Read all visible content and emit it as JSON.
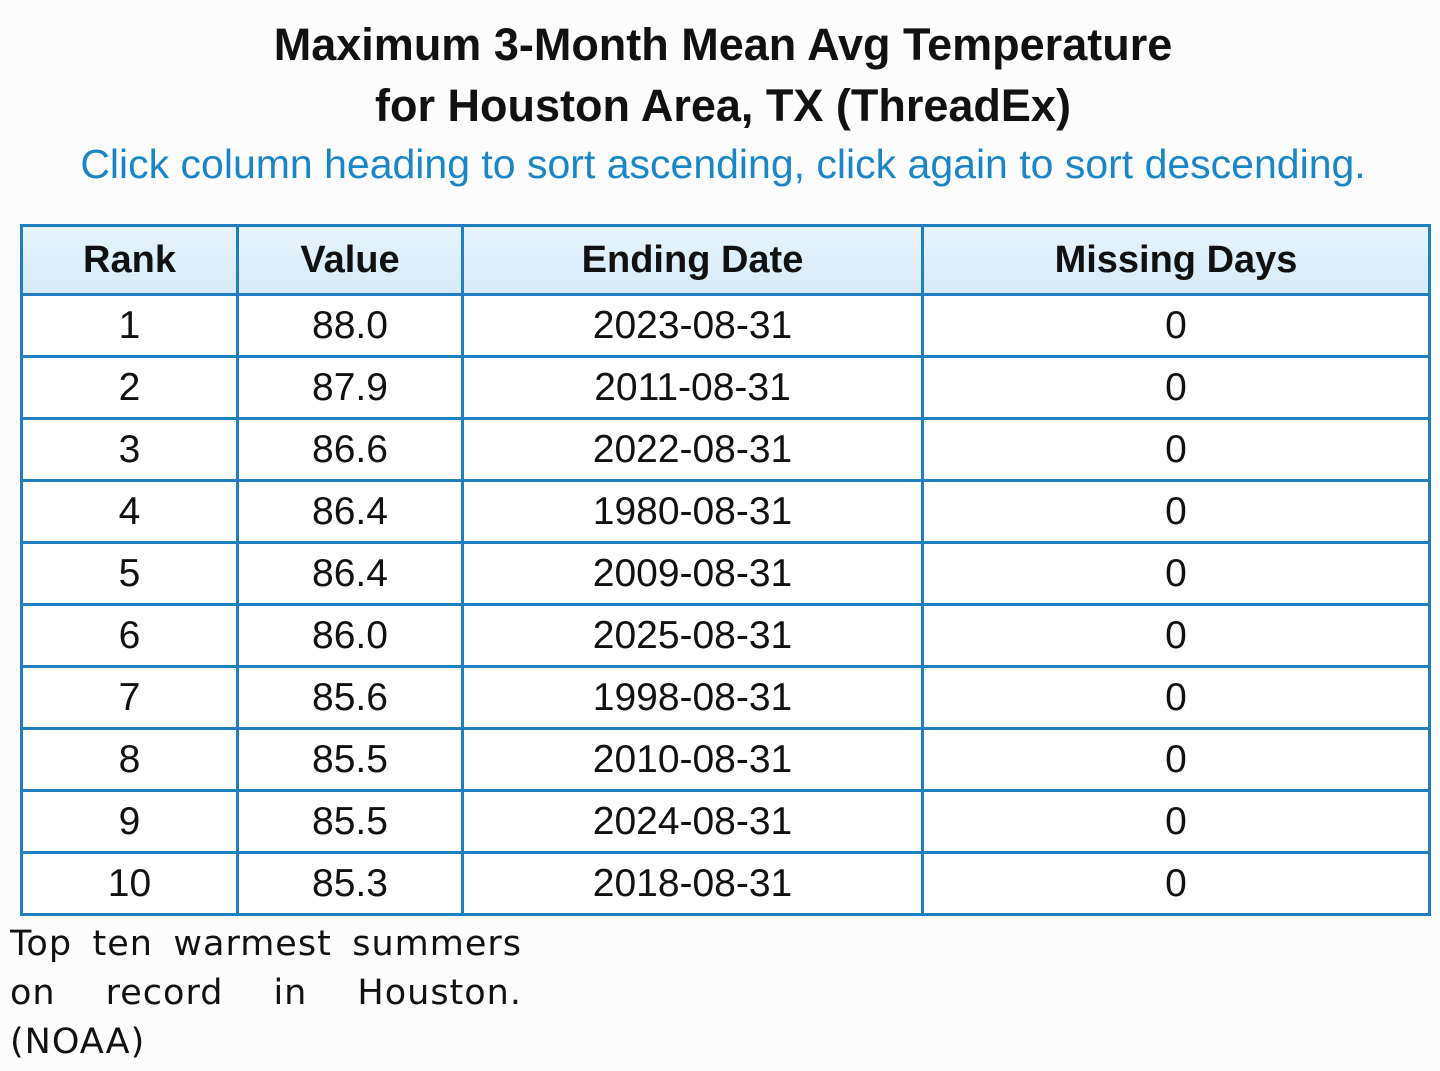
{
  "title": {
    "line1": "Maximum 3-Month Mean Avg Temperature",
    "line2": "for Houston Area, TX (ThreadEx)"
  },
  "instructions": "Click column heading to sort ascending, click again to sort descending.",
  "table": {
    "headers": [
      "Rank",
      "Value",
      "Ending Date",
      "Missing Days"
    ],
    "rows": [
      [
        "1",
        "88.0",
        "2023-08-31",
        "0"
      ],
      [
        "2",
        "87.9",
        "2011-08-31",
        "0"
      ],
      [
        "3",
        "86.6",
        "2022-08-31",
        "0"
      ],
      [
        "4",
        "86.4",
        "1980-08-31",
        "0"
      ],
      [
        "5",
        "86.4",
        "2009-08-31",
        "0"
      ],
      [
        "6",
        "86.0",
        "2025-08-31",
        "0"
      ],
      [
        "7",
        "85.6",
        "1998-08-31",
        "0"
      ],
      [
        "8",
        "85.5",
        "2010-08-31",
        "0"
      ],
      [
        "9",
        "85.5",
        "2024-08-31",
        "0"
      ],
      [
        "10",
        "85.3",
        "2018-08-31",
        "0"
      ]
    ]
  },
  "caption": "Top ten warmest summers on record in Houston. (NOAA)",
  "colors": {
    "accent": "#1a86c7",
    "border": "#1f7fc0",
    "header_bg": "#dcedf9"
  }
}
